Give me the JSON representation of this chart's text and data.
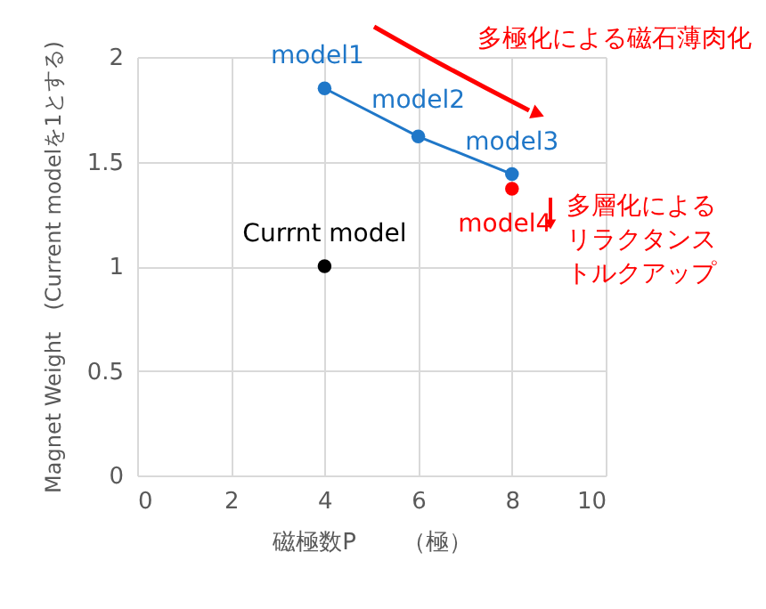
{
  "chart_data": {
    "type": "scatter",
    "xlabel": "磁極数P　　（極）",
    "ylabel": "Magnet Weight　(Current modelを1とする)",
    "series": [
      {
        "type": "scatter",
        "color": "#000000",
        "x": [
          4
        ],
        "values": [
          1
        ]
      },
      {
        "type": "line",
        "color": "#1f77c8",
        "x": [
          4,
          6,
          8
        ],
        "values": [
          1.85,
          1.62,
          1.44
        ]
      },
      {
        "type": "scatter",
        "color": "#ff0000",
        "x": [
          8
        ],
        "values": [
          1.37
        ]
      }
    ],
    "annotations": [
      {
        "text": "Currnt model",
        "x": 4,
        "y": 1
      },
      {
        "text": "model1",
        "x": 4,
        "y": 1.85
      },
      {
        "text": "model2",
        "x": 6,
        "y": 1.62
      },
      {
        "text": "model3",
        "x": 8,
        "y": 1.44
      },
      {
        "text": "model4",
        "x": 8,
        "y": 1.37
      },
      "多極化による磁石薄肉化",
      "多層化によるリラクタンストルクアップ"
    ],
    "xlim": [
      0,
      10
    ],
    "xticks": [
      0,
      2,
      4,
      6,
      8,
      10
    ],
    "ylim": [
      0,
      2
    ],
    "yticks": [
      0,
      0.5,
      1,
      1.5,
      2
    ],
    "grid": true,
    "marker": "circle"
  }
}
